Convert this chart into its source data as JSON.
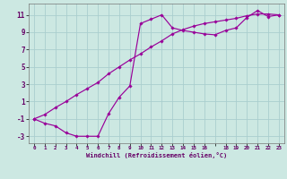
{
  "xlabel": "Windchill (Refroidissement éolien,°C)",
  "bg_color": "#cce8e2",
  "grid_color": "#aacece",
  "line_color": "#990099",
  "xlim": [
    -0.5,
    23.5
  ],
  "ylim": [
    -3.8,
    12.3
  ],
  "yticks": [
    -3,
    -1,
    1,
    3,
    5,
    7,
    9,
    11
  ],
  "curve1_x": [
    0,
    1,
    2,
    3,
    4,
    5,
    6,
    7,
    8,
    9,
    10,
    11,
    12,
    13,
    14,
    15,
    16,
    17,
    18,
    19,
    20,
    21,
    22,
    23
  ],
  "curve1_y": [
    -1.0,
    -1.5,
    -1.8,
    -2.6,
    -3.0,
    -3.0,
    -3.0,
    -0.4,
    1.5,
    2.8,
    10.0,
    10.5,
    11.0,
    9.5,
    9.2,
    9.0,
    8.8,
    8.7,
    9.2,
    9.5,
    10.7,
    11.5,
    10.8,
    11.0
  ],
  "curve2_x": [
    0,
    1,
    2,
    3,
    4,
    5,
    6,
    7,
    8,
    9,
    10,
    11,
    12,
    13,
    14,
    15,
    16,
    17,
    18,
    19,
    20,
    21,
    22,
    23
  ],
  "curve2_y": [
    -1.0,
    -0.5,
    0.3,
    1.0,
    1.8,
    2.5,
    3.2,
    4.2,
    5.0,
    5.8,
    6.5,
    7.3,
    8.0,
    8.8,
    9.3,
    9.7,
    10.0,
    10.2,
    10.4,
    10.6,
    10.9,
    11.1,
    11.1,
    11.0
  ]
}
